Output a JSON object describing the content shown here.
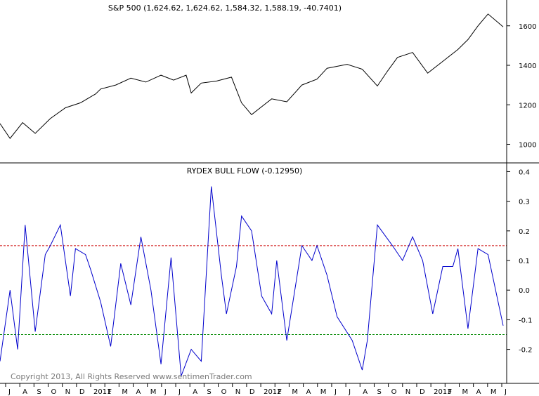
{
  "chart_data": [
    {
      "type": "line",
      "title": "S&P 500 (1,624.62, 1,624.62, 1,584.32, 1,588.19, -40.7401)",
      "yticks": [
        1000,
        1200,
        1400,
        1600
      ],
      "ylim": [
        920,
        1720
      ],
      "series": [
        {
          "name": "",
          "color": "#000000",
          "x": [
            0,
            0.02,
            0.045,
            0.07,
            0.1,
            0.13,
            0.16,
            0.19,
            0.2,
            0.23,
            0.26,
            0.29,
            0.32,
            0.345,
            0.37,
            0.38,
            0.4,
            0.43,
            0.46,
            0.48,
            0.5,
            0.54,
            0.57,
            0.6,
            0.63,
            0.65,
            0.69,
            0.72,
            0.75,
            0.77,
            0.79,
            0.82,
            0.85,
            0.88,
            0.91,
            0.93,
            0.95,
            0.97,
            1.0
          ],
          "values": [
            1105,
            1030,
            1110,
            1055,
            1130,
            1185,
            1210,
            1255,
            1280,
            1300,
            1335,
            1315,
            1350,
            1325,
            1350,
            1260,
            1310,
            1320,
            1340,
            1210,
            1150,
            1230,
            1215,
            1300,
            1330,
            1385,
            1405,
            1380,
            1295,
            1370,
            1440,
            1465,
            1360,
            1420,
            1480,
            1530,
            1600,
            1660,
            1595
          ]
        }
      ]
    },
    {
      "type": "line",
      "title": "RYDEX BULL FLOW (-0.12950)",
      "yticks": [
        -0.2,
        -0.1,
        0.0,
        0.1,
        0.2,
        0.3,
        0.4
      ],
      "ylim": [
        -0.31,
        0.42
      ],
      "reference_lines": [
        {
          "value": 0.15,
          "color": "#cc0000",
          "style": "dashed"
        },
        {
          "value": -0.15,
          "color": "#008800",
          "style": "dashed"
        }
      ],
      "series": [
        {
          "name": "",
          "color": "#0000cc",
          "x": [
            0,
            0.02,
            0.035,
            0.05,
            0.07,
            0.09,
            0.1,
            0.12,
            0.14,
            0.15,
            0.17,
            0.18,
            0.2,
            0.22,
            0.24,
            0.26,
            0.28,
            0.3,
            0.32,
            0.34,
            0.36,
            0.38,
            0.4,
            0.42,
            0.44,
            0.45,
            0.47,
            0.48,
            0.5,
            0.52,
            0.54,
            0.55,
            0.57,
            0.6,
            0.62,
            0.63,
            0.65,
            0.67,
            0.7,
            0.72,
            0.73,
            0.75,
            0.78,
            0.8,
            0.82,
            0.84,
            0.86,
            0.88,
            0.9,
            0.91,
            0.93,
            0.95,
            0.97,
            1.0
          ],
          "values": [
            -0.24,
            0.0,
            -0.2,
            0.22,
            -0.14,
            0.12,
            0.15,
            0.22,
            -0.02,
            0.14,
            0.12,
            0.07,
            -0.04,
            -0.19,
            0.09,
            -0.05,
            0.18,
            0.0,
            -0.25,
            0.11,
            -0.29,
            -0.2,
            -0.24,
            0.35,
            0.05,
            -0.08,
            0.08,
            0.25,
            0.2,
            -0.02,
            -0.08,
            0.1,
            -0.17,
            0.15,
            0.1,
            0.15,
            0.05,
            -0.09,
            -0.17,
            -0.27,
            -0.17,
            0.22,
            0.15,
            0.1,
            0.18,
            0.1,
            -0.08,
            0.08,
            0.08,
            0.14,
            -0.13,
            0.14,
            0.12,
            -0.12
          ]
        }
      ]
    }
  ],
  "x_axis": {
    "labels": [
      "J",
      "A",
      "S",
      "O",
      "N",
      "D",
      "2011",
      "F",
      "M",
      "A",
      "M",
      "J",
      "J",
      "A",
      "S",
      "O",
      "N",
      "D",
      "2012",
      "F",
      "M",
      "A",
      "M",
      "J",
      "J",
      "A",
      "S",
      "O",
      "N",
      "D",
      "2013",
      "F",
      "M",
      "A",
      "M",
      "J"
    ]
  },
  "copyright": "Copyright 2013, All Rights Reserved  www.sentimenTrader.com"
}
